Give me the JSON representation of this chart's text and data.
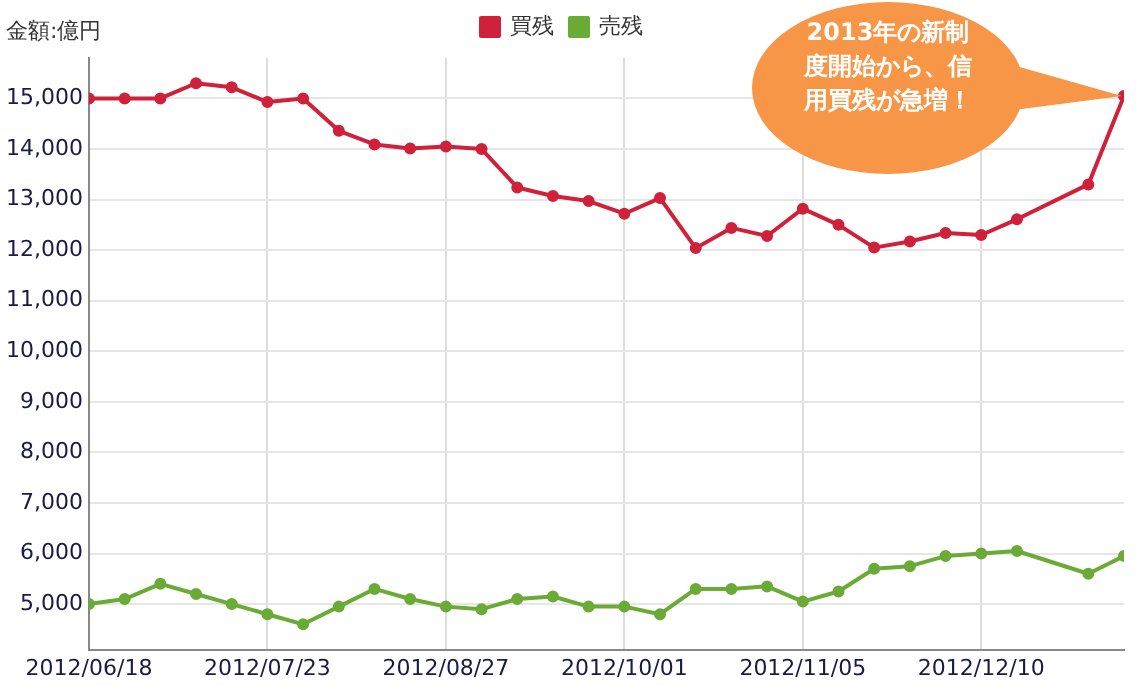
{
  "chart_data": {
    "type": "line",
    "ylabel": "金額:億円",
    "x": [
      "2012-06-18",
      "2012-06-25",
      "2012-07-02",
      "2012-07-09",
      "2012-07-16",
      "2012-07-23",
      "2012-07-30",
      "2012-08-06",
      "2012-08-13",
      "2012-08-20",
      "2012-08-27",
      "2012-09-03",
      "2012-09-10",
      "2012-09-17",
      "2012-09-24",
      "2012-10-01",
      "2012-10-08",
      "2012-10-15",
      "2012-10-22",
      "2012-10-29",
      "2012-11-05",
      "2012-11-12",
      "2012-11-19",
      "2012-11-26",
      "2012-12-03",
      "2012-12-10",
      "2012-12-17",
      "2012-12-31",
      "2013-01-07"
    ],
    "series": [
      {
        "name": "買残",
        "color": "#d0213a",
        "values": [
          15000,
          15000,
          15000,
          15300,
          15220,
          14930,
          15000,
          14360,
          14090,
          14010,
          14050,
          14000,
          13240,
          13070,
          12970,
          12720,
          13030,
          12040,
          12440,
          12280,
          12820,
          12500,
          12050,
          12170,
          12340,
          12300,
          12610,
          13300,
          15050
        ]
      },
      {
        "name": "売残",
        "color": "#6aab35",
        "values": [
          5000,
          5100,
          5400,
          5200,
          5000,
          4800,
          4600,
          4950,
          5300,
          5100,
          4950,
          4900,
          5100,
          5150,
          4950,
          4950,
          4800,
          5300,
          5300,
          5350,
          5050,
          5250,
          5700,
          5750,
          5950,
          6000,
          6050,
          5600,
          5950
        ]
      }
    ],
    "xlim": [
      "2012-06-18",
      "2013-01-07"
    ],
    "xticks": [
      {
        "value": "2012-06-18",
        "label": "2012/06/18"
      },
      {
        "value": "2012-07-23",
        "label": "2012/07/23"
      },
      {
        "value": "2012-08-27",
        "label": "2012/08/27"
      },
      {
        "value": "2012-10-01",
        "label": "2012/10/01"
      },
      {
        "value": "2012-11-05",
        "label": "2012/11/05"
      },
      {
        "value": "2012-12-10",
        "label": "2012/12/10"
      }
    ],
    "ylim": [
      4100,
      15800
    ],
    "yticks": [
      {
        "value": 5000,
        "label": "5,000"
      },
      {
        "value": 6000,
        "label": "6,000"
      },
      {
        "value": 7000,
        "label": "7,000"
      },
      {
        "value": 8000,
        "label": "8,000"
      },
      {
        "value": 9000,
        "label": "9,000"
      },
      {
        "value": 10000,
        "label": "10,000"
      },
      {
        "value": 11000,
        "label": "11,000"
      },
      {
        "value": 12000,
        "label": "12,000"
      },
      {
        "value": 13000,
        "label": "13,000"
      },
      {
        "value": 14000,
        "label": "14,000"
      },
      {
        "value": 15000,
        "label": "15,000"
      }
    ],
    "annotations": [
      "2013年の新制度開始から、信用買残が急増！"
    ],
    "grid": true,
    "legend": "top",
    "marker": "circle",
    "line_style": "solid"
  }
}
